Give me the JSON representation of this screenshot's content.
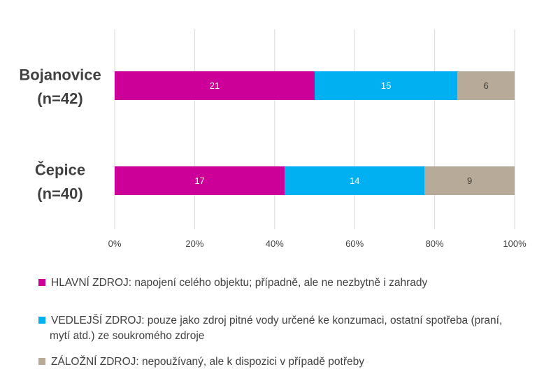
{
  "chart_data": {
    "type": "bar",
    "orientation": "horizontal",
    "stacked": "percent",
    "categories": [
      "Bojanovice\n(n=42)",
      "Čepice\n(n=40)"
    ],
    "series": [
      {
        "name": "HLAVNÍ ZDROJ: napojení celého objektu; případně, ale ne nezbytně i zahrady",
        "values": [
          21,
          17
        ],
        "color": "#cc0099"
      },
      {
        "name": "VEDLEJŠÍ ZDROJ: pouze jako zdroj pitné vody určené ke konzumaci, ostatní spotřeba (praní, mytí atd.) ze soukromého zdroje",
        "values": [
          15,
          14
        ],
        "color": "#00b0f0"
      },
      {
        "name": "ZÁLOŽNÍ ZDROJ: nepoužívaný, ale k dispozici v případě potřeby",
        "values": [
          6,
          9
        ],
        "color": "#b8aa98"
      }
    ],
    "xticks": [
      "0%",
      "20%",
      "40%",
      "60%",
      "80%",
      "100%"
    ],
    "xlim": [
      0,
      100
    ],
    "grid": "vertical",
    "legend_position": "bottom",
    "title": "",
    "xlabel": "",
    "ylabel": ""
  }
}
